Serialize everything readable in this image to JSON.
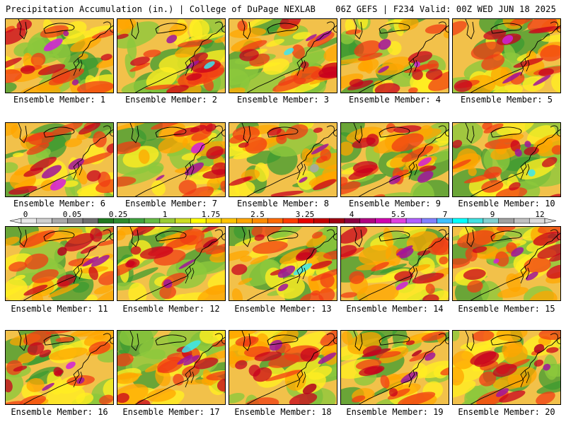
{
  "header": {
    "left": "Precipitation Accumulation (in.) | College of DuPage NEXLAB",
    "right": "06Z GEFS | F234 Valid: 00Z WED JUN 18 2025"
  },
  "member_label": "Ensemble Member:",
  "members": [
    {
      "num": "1",
      "wettest": "magenta"
    },
    {
      "num": "2",
      "wettest": "cyan"
    },
    {
      "num": "3",
      "wettest": "cyan"
    },
    {
      "num": "4",
      "wettest": "magenta"
    },
    {
      "num": "5",
      "wettest": "magenta"
    },
    {
      "num": "6",
      "wettest": "magenta"
    },
    {
      "num": "7",
      "wettest": "magenta"
    },
    {
      "num": "8",
      "wettest": "gray"
    },
    {
      "num": "9",
      "wettest": "magenta"
    },
    {
      "num": "10",
      "wettest": "cyan"
    },
    {
      "num": "11",
      "wettest": "red"
    },
    {
      "num": "12",
      "wettest": "red"
    },
    {
      "num": "13",
      "wettest": "cyan"
    },
    {
      "num": "14",
      "wettest": "magenta"
    },
    {
      "num": "15",
      "wettest": "magenta"
    },
    {
      "num": "16",
      "wettest": "magenta"
    },
    {
      "num": "17",
      "wettest": "cyan"
    },
    {
      "num": "18",
      "wettest": "red"
    },
    {
      "num": "19",
      "wettest": "red"
    },
    {
      "num": "20",
      "wettest": "red"
    }
  ],
  "colorbar": {
    "tick_labels": [
      "0",
      "0.05",
      "0.25",
      "1",
      "1.75",
      "2.5",
      "3.25",
      "4",
      "5.5",
      "7",
      "9",
      "12"
    ],
    "colors": [
      "#e8e8e8",
      "#cfcfcf",
      "#a9a9a9",
      "#8a8a8a",
      "#6f6f6f",
      "#1f7a1f",
      "#2e8b2e",
      "#3fa23f",
      "#66bb44",
      "#99cc33",
      "#ccdd22",
      "#ffff00",
      "#ffe000",
      "#ffc400",
      "#ffa500",
      "#ff8c00",
      "#ff6a00",
      "#ff3c00",
      "#e80000",
      "#c40000",
      "#a00010",
      "#8b0040",
      "#b00080",
      "#d000b0",
      "#e040e0",
      "#b060ff",
      "#8080ff",
      "#40c0ff",
      "#00ffff",
      "#40e0e0",
      "#80d0d0",
      "#a0a0a0",
      "#c0c0c0",
      "#dcdcdc"
    ]
  }
}
